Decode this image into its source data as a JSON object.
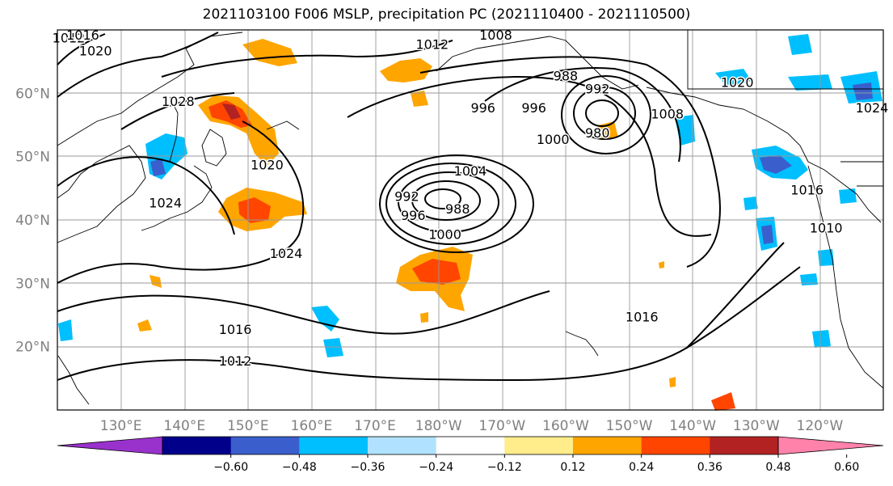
{
  "title": "2021103100 F006 MSLP, precipitation PC (2021110400 - 2021110500)",
  "map": {
    "lat_ticks": [
      "60°N",
      "50°N",
      "40°N",
      "30°N",
      "20°N"
    ],
    "lon_ticks": [
      "130°E",
      "140°E",
      "150°E",
      "160°E",
      "170°E",
      "180°W",
      "170°W",
      "160°W",
      "150°W",
      "140°W",
      "130°W",
      "120°W"
    ],
    "lat_range": [
      10,
      70
    ],
    "lon_range": [
      120,
      250
    ],
    "contour_color": "#000000",
    "grid": true,
    "contour_labels": [
      {
        "text": "1012",
        "lon": 121,
        "lat": 68
      },
      {
        "text": "1016",
        "lon": 124,
        "lat": 69
      },
      {
        "text": "1020",
        "lon": 126,
        "lat": 66
      },
      {
        "text": "1028",
        "lon": 139,
        "lat": 58
      },
      {
        "text": "1024",
        "lon": 137,
        "lat": 42
      },
      {
        "text": "1020",
        "lon": 153,
        "lat": 48
      },
      {
        "text": "1024",
        "lon": 156,
        "lat": 34
      },
      {
        "text": "1012",
        "lon": 179,
        "lat": 67
      },
      {
        "text": "1008",
        "lon": 189,
        "lat": 70
      },
      {
        "text": "996",
        "lon": 187,
        "lat": 57
      },
      {
        "text": "996",
        "lon": 195,
        "lat": 57
      },
      {
        "text": "988",
        "lon": 200,
        "lat": 62
      },
      {
        "text": "992",
        "lon": 205,
        "lat": 60
      },
      {
        "text": "980",
        "lon": 205,
        "lat": 53
      },
      {
        "text": "1000",
        "lon": 198,
        "lat": 52
      },
      {
        "text": "1004",
        "lon": 185,
        "lat": 47
      },
      {
        "text": "992",
        "lon": 175,
        "lat": 43
      },
      {
        "text": "996",
        "lon": 176,
        "lat": 40
      },
      {
        "text": "988",
        "lon": 183,
        "lat": 41
      },
      {
        "text": "1000",
        "lon": 181,
        "lat": 37
      },
      {
        "text": "1008",
        "lon": 216,
        "lat": 56
      },
      {
        "text": "1020",
        "lon": 227,
        "lat": 61
      },
      {
        "text": "1024",
        "lon": 250,
        "lat": 57
      },
      {
        "text": "1016",
        "lon": 238,
        "lat": 44
      },
      {
        "text": "1010",
        "lon": 241,
        "lat": 38
      },
      {
        "text": "1016",
        "lon": 212,
        "lat": 24
      },
      {
        "text": "1016",
        "lon": 148,
        "lat": 22
      },
      {
        "text": "1012",
        "lon": 148,
        "lat": 17
      }
    ]
  },
  "colorbar": {
    "labels": [
      "−0.60",
      "−0.48",
      "−0.36",
      "−0.24",
      "−0.12",
      "0.12",
      "0.24",
      "0.36",
      "0.48",
      "0.60"
    ],
    "bounds": [
      -0.6,
      -0.48,
      -0.36,
      -0.24,
      -0.12,
      0.12,
      0.24,
      0.36,
      0.48,
      0.6
    ],
    "colors": [
      "#9932cc",
      "#00008b",
      "#3a5fcd",
      "#00bfff",
      "#b0e2ff",
      "#ffffff",
      "#ffec8b",
      "#ffa500",
      "#ff4500",
      "#b22222",
      "#ff82ab"
    ]
  }
}
